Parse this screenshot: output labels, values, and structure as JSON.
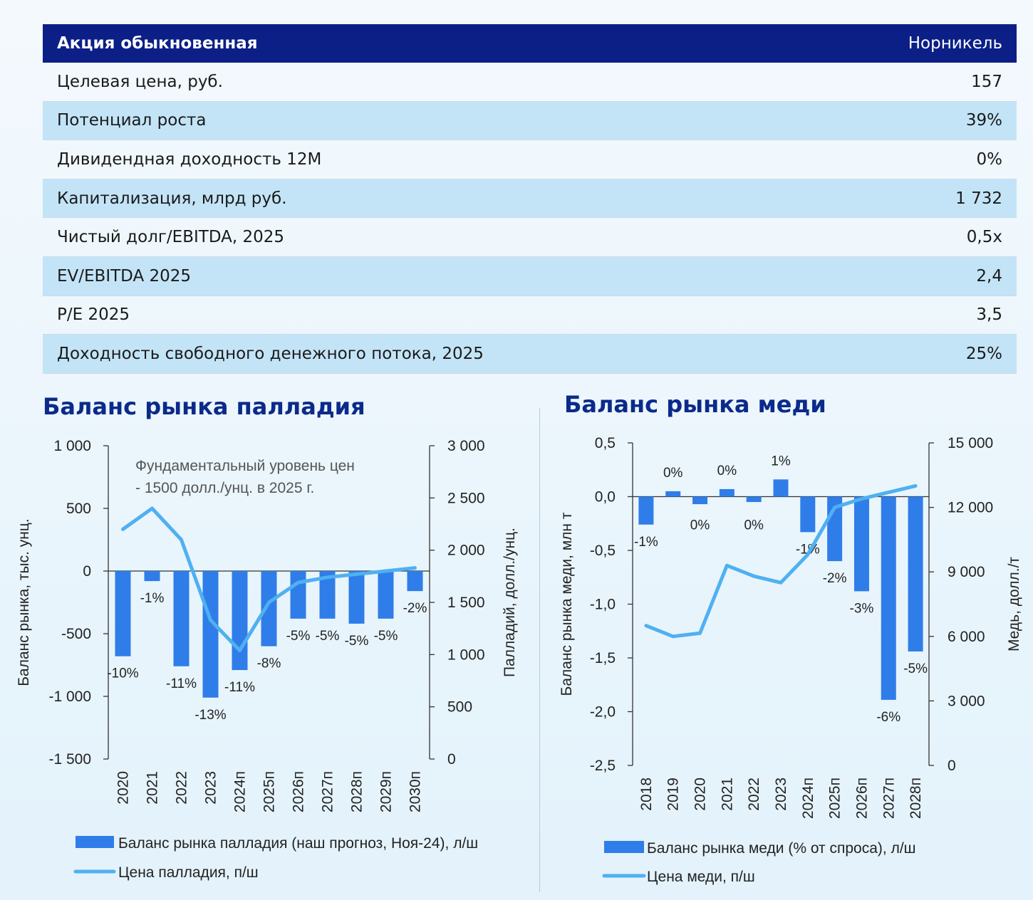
{
  "table": {
    "header_left": "Акция обыкновенная",
    "header_right": "Норникель",
    "rows": [
      {
        "label": "Целевая цена, руб.",
        "value": "157"
      },
      {
        "label": "Потенциал роста",
        "value": "39%"
      },
      {
        "label": "Дивидендная доходность 12М",
        "value": "0%"
      },
      {
        "label": "Капитализация, млрд руб.",
        "value": "1 732"
      },
      {
        "label": "Чистый долг/EBITDA, 2025",
        "value": "0,5x"
      },
      {
        "label": "EV/EBITDA 2025",
        "value": "2,4"
      },
      {
        "label": "P/E 2025",
        "value": "3,5"
      },
      {
        "label": "Доходность свободного денежного потока, 2025",
        "value": "25%"
      }
    ]
  },
  "colors": {
    "bar": "#2f7de8",
    "line": "#4fb0f2",
    "header": "#0b1f86",
    "title": "#0b2a8a"
  },
  "chart_data": [
    {
      "type": "bar+line",
      "title": "Баланс рынка палладия",
      "ylabel": "Баланс рынка, тыс. унц.",
      "y2label": "Палладий, долл./унц.",
      "ylim": [
        -1500,
        1000
      ],
      "y2lim": [
        0,
        3000
      ],
      "yticks": [
        1000,
        500,
        0,
        -500,
        -1000,
        -1500
      ],
      "ytick_labels": [
        "1 000",
        "500",
        "0",
        "-500",
        "-1 000",
        "-1 500"
      ],
      "y2ticks": [
        3000,
        2500,
        2000,
        1500,
        1000,
        500,
        0
      ],
      "y2tick_labels": [
        "3 000",
        "2 500",
        "2 000",
        "1 500",
        "1 000",
        "500",
        "0"
      ],
      "categories": [
        "2020",
        "2021",
        "2022",
        "2023",
        "2024п",
        "2025п",
        "2026п",
        "2027п",
        "2028п",
        "2029п",
        "2030п"
      ],
      "series": [
        {
          "name": "Баланс рынка палладия (наш прогноз, Ноя-24), л/ш",
          "kind": "bar",
          "axis": "left",
          "values": [
            -680,
            -80,
            -760,
            -1010,
            -790,
            -600,
            -380,
            -380,
            -420,
            -380,
            -160
          ],
          "labels": [
            "-10%",
            "-1%",
            "-11%",
            "-13%",
            "-11%",
            "-8%",
            "-5%",
            "-5%",
            "-5%",
            "-5%",
            "-2%"
          ]
        },
        {
          "name": "Цена палладия, п/ш",
          "kind": "line",
          "axis": "right",
          "values": [
            2200,
            2400,
            2100,
            1330,
            1040,
            1500,
            1690,
            1740,
            1770,
            1800,
            1830
          ]
        }
      ],
      "annotation": [
        "Фундаментальный уровень цен",
        "- 1500 долл./унц. в 2025 г."
      ]
    },
    {
      "type": "bar+line",
      "title": "Баланс рынка меди",
      "ylabel": "Баланс рынка меди, млн т",
      "y2label": "Медь, долл./т",
      "ylim": [
        -2.5,
        0.5
      ],
      "y2lim": [
        0,
        15000
      ],
      "yticks": [
        0.5,
        0,
        -0.5,
        -1,
        -1.5,
        -2,
        -2.5
      ],
      "ytick_labels": [
        "0,5",
        "0,0",
        "-0,5",
        "-1,0",
        "-1,5",
        "-2,0",
        "-2,5"
      ],
      "y2ticks": [
        15000,
        12000,
        9000,
        6000,
        3000,
        0
      ],
      "y2tick_labels": [
        "15 000",
        "12 000",
        "9 000",
        "6 000",
        "3 000",
        "0"
      ],
      "categories": [
        "2018",
        "2019",
        "2020",
        "2021",
        "2022",
        "2023",
        "2024п",
        "2025п",
        "2026п",
        "2027п",
        "2028п"
      ],
      "series": [
        {
          "name": "Баланс рынка меди (% от спроса), л/ш",
          "kind": "bar",
          "axis": "left",
          "values": [
            -0.26,
            0.05,
            -0.07,
            0.07,
            -0.05,
            0.16,
            -0.33,
            -0.6,
            -0.88,
            -1.89,
            -1.44
          ],
          "labels": [
            "-1%",
            "0%",
            "0%",
            "0%",
            "0%",
            "1%",
            "-1%",
            "-2%",
            "-3%",
            "-6%",
            "-5%"
          ]
        },
        {
          "name": "Цена меди, п/ш",
          "kind": "line",
          "axis": "right",
          "values": [
            6500,
            6000,
            6150,
            9300,
            8800,
            8500,
            9800,
            12000,
            12400,
            12700,
            13000
          ]
        }
      ]
    }
  ]
}
